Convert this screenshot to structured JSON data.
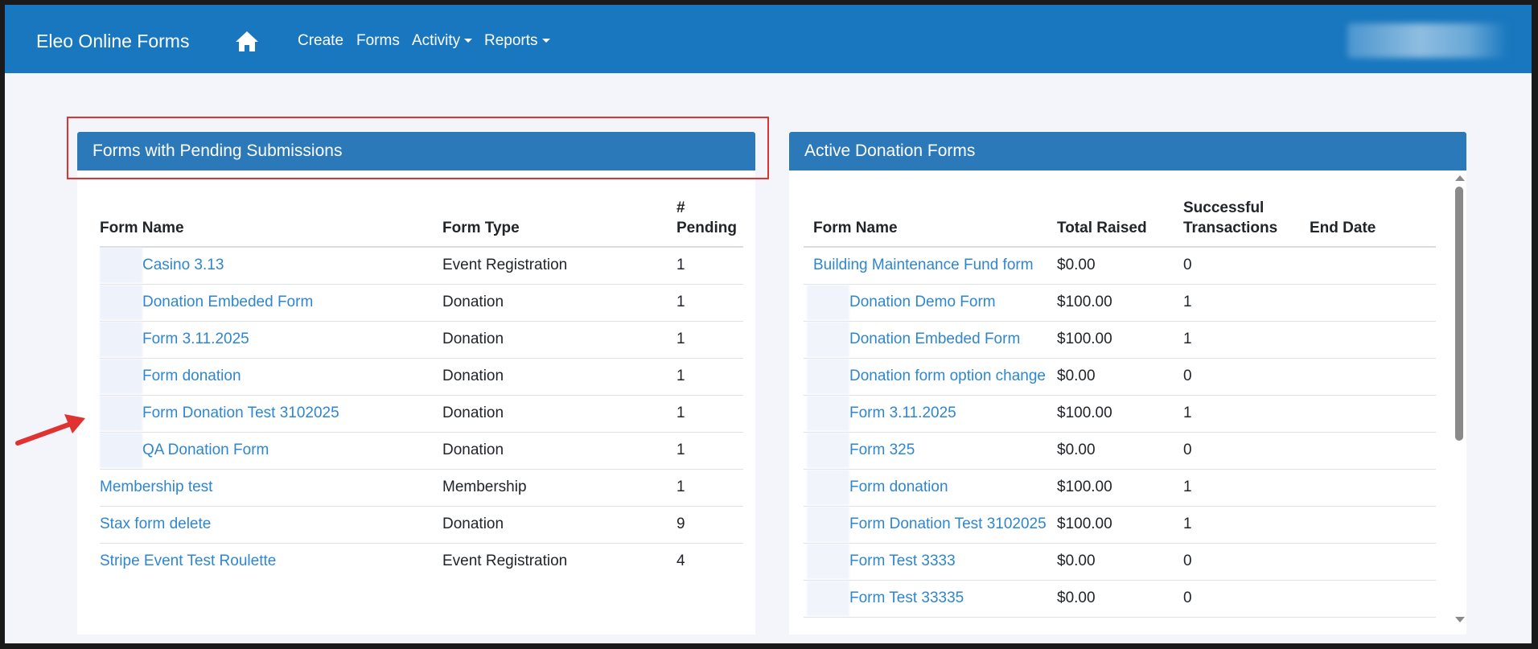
{
  "navbar": {
    "brand": "Eleo Online Forms",
    "items": [
      {
        "label": "Create"
      },
      {
        "label": "Forms"
      },
      {
        "label": "Activity"
      },
      {
        "label": "Reports"
      }
    ]
  },
  "pending": {
    "title": "Forms with Pending Submissions",
    "columns": [
      "Form Name",
      "Form Type",
      "#",
      "Pending"
    ],
    "rows": [
      {
        "name": "Casino 3.13",
        "type": "Event Registration",
        "pending": "1"
      },
      {
        "name": "Donation Embeded Form",
        "type": "Donation",
        "pending": "1"
      },
      {
        "name": "Form 3.11.2025",
        "type": "Donation",
        "pending": "1"
      },
      {
        "name": "Form donation",
        "type": "Donation",
        "pending": "1"
      },
      {
        "name": "Form Donation Test 3102025",
        "type": "Donation",
        "pending": "1"
      },
      {
        "name": "QA Donation Form",
        "type": "Donation",
        "pending": "1"
      },
      {
        "name": "Membership test",
        "type": "Membership",
        "pending": "1"
      },
      {
        "name": "Stax form delete",
        "type": "Donation",
        "pending": "9"
      },
      {
        "name": "Stripe Event Test Roulette",
        "type": "Event Registration",
        "pending": "4"
      }
    ]
  },
  "donations": {
    "title": "Active Donation Forms",
    "columns": [
      "Form Name",
      "Total Raised",
      "Successful",
      "Transactions",
      "End Date"
    ],
    "rows": [
      {
        "name": "Building Maintenance Fund form",
        "raised": "$0.00",
        "transactions": "0",
        "end": ""
      },
      {
        "name": "Donation Demo Form",
        "raised": "$100.00",
        "transactions": "1",
        "end": ""
      },
      {
        "name": "Donation Embeded Form",
        "raised": "$100.00",
        "transactions": "1",
        "end": ""
      },
      {
        "name": "Donation form option change",
        "raised": "$0.00",
        "transactions": "0",
        "end": ""
      },
      {
        "name": "Form 3.11.2025",
        "raised": "$100.00",
        "transactions": "1",
        "end": ""
      },
      {
        "name": "Form 325",
        "raised": "$0.00",
        "transactions": "0",
        "end": ""
      },
      {
        "name": "Form donation",
        "raised": "$100.00",
        "transactions": "1",
        "end": ""
      },
      {
        "name": "Form Donation Test 3102025",
        "raised": "$100.00",
        "transactions": "1",
        "end": ""
      },
      {
        "name": "Form Test 3333",
        "raised": "$0.00",
        "transactions": "0",
        "end": ""
      },
      {
        "name": "Form Test 33335",
        "raised": "$0.00",
        "transactions": "0",
        "end": ""
      }
    ]
  },
  "colors": {
    "navbar": "#1877be",
    "panel_header": "#2c79b9",
    "link": "#2f86d0",
    "annotation_red": "#e13232"
  }
}
